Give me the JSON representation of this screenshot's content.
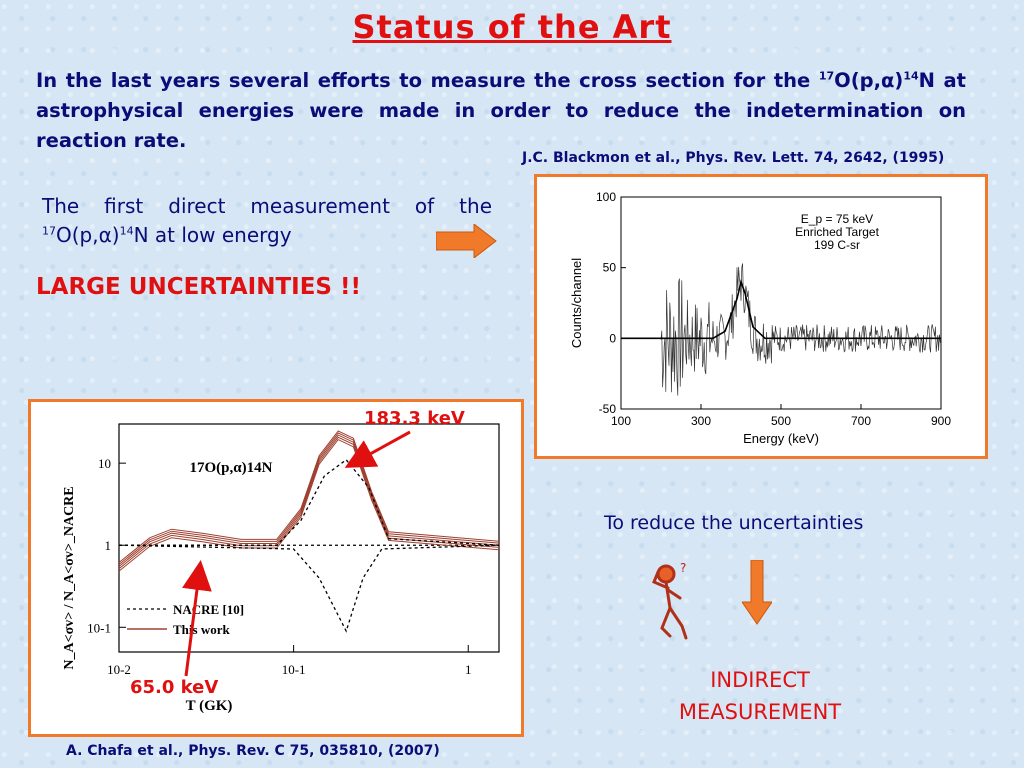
{
  "slide": {
    "title": "Status of the Art",
    "intro": {
      "part1": "In the last years several efforts to measure the cross section for the ",
      "sup1": "17",
      "part2": "O(p,α)",
      "sup2": "14",
      "part3": "N at astrophysical energies were made in order to reduce the indetermination on reaction rate."
    },
    "reference_top": "J.C. Blackmon et al., Phys. Rev. Lett. 74, 2642, (1995)",
    "first_measurement": {
      "part1": "The first direct measurement of the ",
      "sup1": "17",
      "part2": "O(p,α)",
      "sup2": "14",
      "part3": "N at low energy"
    },
    "large_uncertainties": "LARGE UNCERTAINTIES !!",
    "annotation_high": "183.3 keV",
    "annotation_low": "65.0 keV",
    "reference_bottom": "A. Chafa et al., Phys. Rev. C 75, 035810, (2007)",
    "reduce_text": "To reduce the uncertainties",
    "indirect_line1": "INDIRECT",
    "indirect_line2": "MEASUREMENT",
    "colors": {
      "title": "#e01010",
      "text": "#0c0c78",
      "accent": "#f07a2a"
    }
  },
  "chart_data": [
    {
      "type": "line",
      "xlabel": "Energy (keV)",
      "ylabel": "Counts/channel",
      "xlim": [
        100,
        900
      ],
      "ylim": [
        -50,
        100
      ],
      "xticks": [
        "100",
        "300",
        "500",
        "700",
        "900"
      ],
      "yticks": [
        "-50",
        "0",
        "50",
        "100"
      ],
      "annotations": [
        "E_p = 75 keV",
        "Enriched Target",
        "199 C-sr"
      ],
      "series": [
        {
          "values_fit": [
            [
              100,
              0
            ],
            [
              330,
              0
            ],
            [
              360,
              5
            ],
            [
              390,
              28
            ],
            [
              400,
              40
            ],
            [
              410,
              32
            ],
            [
              430,
              8
            ],
            [
              460,
              0
            ],
            [
              900,
              0
            ]
          ]
        }
      ]
    },
    {
      "type": "line",
      "xlabel": "T (GK)",
      "ylabel": "N_A<σv> / N_A<σv>_NACRE",
      "xscale": "log",
      "yscale": "log",
      "xlim": [
        0.01,
        1.5
      ],
      "ylim": [
        0.05,
        30
      ],
      "xticks": [
        "10-2",
        "10-1",
        "1"
      ],
      "yticks": [
        "10-1",
        "1",
        "10"
      ],
      "reaction_label": "17O(p,α)14N",
      "legend": [
        "NACRE [10]",
        "This work"
      ],
      "series": [
        {
          "name": "This work",
          "points": [
            [
              0.01,
              0.55
            ],
            [
              0.015,
              1.1
            ],
            [
              0.02,
              1.4
            ],
            [
              0.03,
              1.25
            ],
            [
              0.05,
              1.05
            ],
            [
              0.08,
              1.05
            ],
            [
              0.11,
              2.5
            ],
            [
              0.14,
              11
            ],
            [
              0.18,
              22
            ],
            [
              0.22,
              18
            ],
            [
              0.28,
              4
            ],
            [
              0.35,
              1.3
            ],
            [
              1.5,
              1
            ]
          ]
        },
        {
          "name": "NACRE [10]",
          "points": [
            [
              0.01,
              1
            ],
            [
              0.08,
              1
            ],
            [
              0.11,
              2
            ],
            [
              0.15,
              7
            ],
            [
              0.2,
              11
            ],
            [
              0.27,
              5
            ],
            [
              0.35,
              1.2
            ],
            [
              1.5,
              1
            ]
          ]
        },
        {
          "name": "NACRE [10]",
          "points": [
            [
              0.01,
              1
            ],
            [
              0.1,
              0.9
            ],
            [
              0.14,
              0.4
            ],
            [
              0.2,
              0.09
            ],
            [
              0.25,
              0.4
            ],
            [
              0.32,
              0.9
            ],
            [
              1.5,
              1
            ]
          ]
        }
      ]
    }
  ]
}
